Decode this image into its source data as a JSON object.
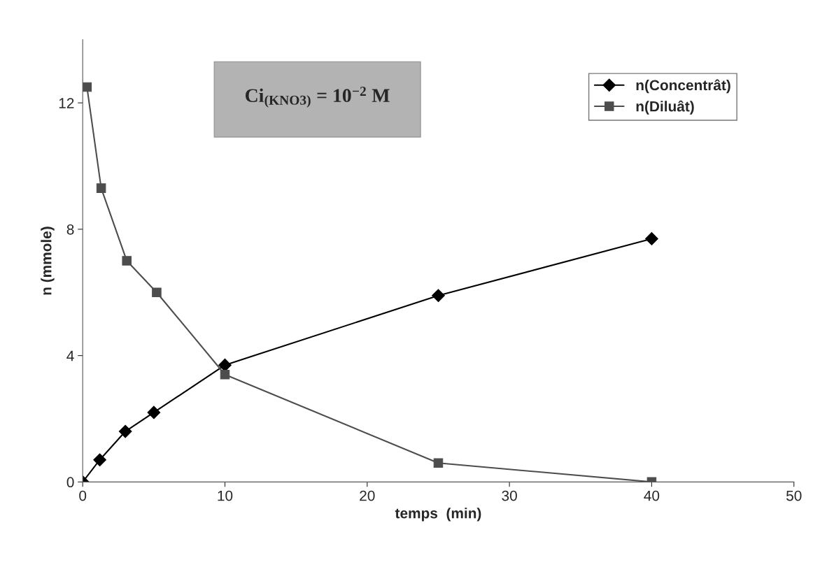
{
  "chart_data": {
    "type": "line",
    "xlabel": "temps  (min)",
    "ylabel": "n (mmole)",
    "annotations": [
      "Ci$_{(KNO3)}$ = 10$^{−2}$ M"
    ],
    "series": [
      {
        "name": "n(Concentrât)",
        "color": "#000000",
        "marker": "diamond",
        "x": [
          0,
          1.2,
          3,
          5,
          10,
          25,
          40
        ],
        "values": [
          0,
          0.7,
          1.6,
          2.2,
          3.7,
          5.9,
          7.7
        ]
      },
      {
        "name": "n(Diluât)",
        "color": "#4d4d4d",
        "marker": "square",
        "x": [
          0.3,
          1.3,
          3.1,
          5.2,
          10,
          25,
          40
        ],
        "values": [
          12.5,
          9.3,
          7.0,
          6.0,
          3.4,
          0.6,
          0
        ]
      }
    ],
    "xlim": [
      0,
      50
    ],
    "xticks": [
      0,
      10,
      20,
      30,
      40,
      50
    ],
    "ylim": [
      0,
      14
    ],
    "yticks": [
      0,
      4,
      8,
      12
    ],
    "grid": false,
    "legend": "top right"
  }
}
